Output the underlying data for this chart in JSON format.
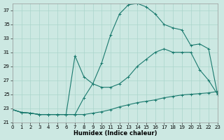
{
  "xlabel": "Humidex (Indice chaleur)",
  "bg_color": "#cce8e2",
  "grid_color": "#aad4cc",
  "line_color": "#1a7a6e",
  "xlim": [
    0,
    23
  ],
  "ylim": [
    21,
    38
  ],
  "yticks": [
    21,
    23,
    25,
    27,
    29,
    31,
    33,
    35,
    37
  ],
  "xticks": [
    0,
    1,
    2,
    3,
    4,
    5,
    6,
    7,
    8,
    9,
    10,
    11,
    12,
    13,
    14,
    15,
    16,
    17,
    18,
    19,
    20,
    21,
    22,
    23
  ],
  "curve_top_x": [
    0,
    1,
    2,
    3,
    4,
    5,
    6,
    7,
    8,
    9,
    10,
    11,
    12,
    13,
    14,
    15,
    16,
    17,
    18,
    19,
    20,
    21,
    22,
    23
  ],
  "curve_top_y": [
    22.8,
    22.4,
    22.3,
    22.1,
    22.1,
    22.1,
    22.1,
    22.1,
    24.5,
    26.5,
    29.5,
    33.5,
    36.5,
    37.8,
    38.0,
    37.5,
    36.5,
    35.0,
    34.5,
    34.2,
    32.0,
    32.2,
    31.5,
    25.0
  ],
  "curve_mid_x": [
    0,
    1,
    2,
    3,
    4,
    5,
    6,
    7,
    8,
    9,
    10,
    11,
    12,
    13,
    14,
    15,
    16,
    17,
    18,
    19,
    20,
    21,
    22,
    23
  ],
  "curve_mid_y": [
    22.8,
    22.4,
    22.3,
    22.1,
    22.1,
    22.1,
    22.1,
    30.5,
    27.5,
    26.5,
    26.0,
    26.0,
    26.5,
    27.5,
    29.0,
    30.0,
    31.0,
    31.5,
    31.0,
    31.0,
    31.0,
    28.5,
    27.0,
    25.0
  ],
  "curve_bot_x": [
    0,
    1,
    2,
    3,
    4,
    5,
    6,
    7,
    8,
    9,
    10,
    11,
    12,
    13,
    14,
    15,
    16,
    17,
    18,
    19,
    20,
    21,
    22,
    23
  ],
  "curve_bot_y": [
    22.8,
    22.4,
    22.3,
    22.1,
    22.1,
    22.1,
    22.1,
    22.1,
    22.1,
    22.3,
    22.5,
    22.8,
    23.2,
    23.5,
    23.8,
    24.0,
    24.2,
    24.5,
    24.7,
    24.9,
    25.0,
    25.1,
    25.2,
    25.4
  ]
}
